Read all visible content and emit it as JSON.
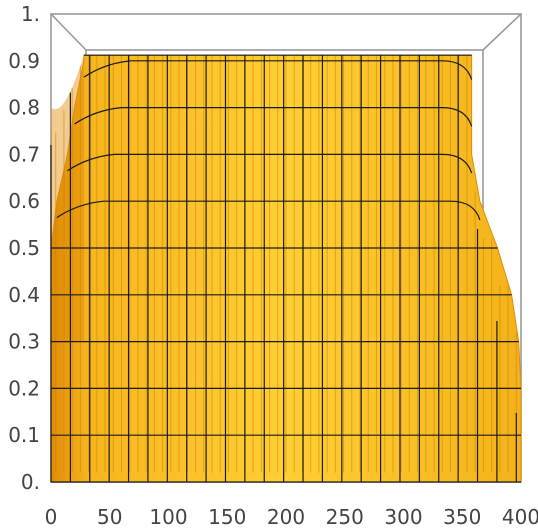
{
  "chart_data": {
    "type": "surface3d",
    "x_ticks": [
      "0",
      "50",
      "100",
      "150",
      "200",
      "250",
      "300",
      "350",
      "400"
    ],
    "y_ticks": [
      "0.",
      "0.1",
      "0.2",
      "0.3",
      "0.4",
      "0.5",
      "0.6",
      "0.7",
      "0.8",
      "0.9",
      "1."
    ],
    "xlim": [
      0,
      400
    ],
    "ylim": [
      0,
      1
    ],
    "grid": false,
    "legend": "none",
    "colors": {
      "surface_light": "#ffd23a",
      "surface_mid": "#f8b51e",
      "surface_dark": "#e08c06",
      "mesh_line": "#1a1a1a",
      "box_edge": "#9a9a9a",
      "tick_text": "#444444"
    },
    "mesh_levels": [
      0,
      0.1,
      0.2,
      0.3,
      0.4,
      0.5,
      0.6,
      0.7,
      0.8,
      0.9
    ],
    "x_at_level": [
      [
        0,
        400
      ],
      [
        0,
        400
      ],
      [
        0,
        400
      ],
      [
        0,
        398
      ],
      [
        0,
        392
      ],
      [
        0,
        380
      ],
      [
        5,
        365
      ],
      [
        14,
        358
      ],
      [
        20,
        358
      ],
      [
        28,
        358
      ]
    ]
  }
}
